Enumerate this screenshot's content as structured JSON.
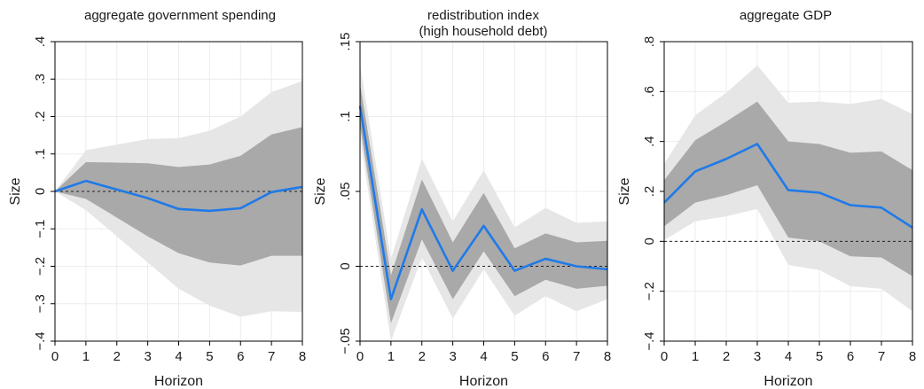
{
  "chart_data": [
    {
      "type": "area",
      "title": "aggregate government spending",
      "title2": "",
      "xlabel": "Horizon",
      "ylabel": "Size",
      "xlim": [
        0,
        8
      ],
      "ylim": [
        -0.4,
        0.4
      ],
      "xticks": [
        0,
        1,
        2,
        3,
        4,
        5,
        6,
        7,
        8
      ],
      "xtick_labels": [
        "0",
        "1",
        "2",
        "3",
        "4",
        "5",
        "6",
        "7",
        "8"
      ],
      "yticks": [
        -0.4,
        -0.3,
        -0.2,
        -0.1,
        0,
        0.1,
        0.2,
        0.3,
        0.4
      ],
      "ytick_labels": [
        "−.4",
        "−.3",
        "−.2",
        "−.1",
        "0",
        ".1",
        ".2",
        ".3",
        ".4"
      ],
      "x": [
        0,
        1,
        2,
        3,
        4,
        5,
        6,
        7,
        8
      ],
      "series": [
        {
          "role": "outer-band-upper",
          "values": [
            0,
            0.11,
            0.125,
            0.14,
            0.142,
            0.162,
            0.2,
            0.265,
            0.295
          ]
        },
        {
          "role": "outer-band-lower",
          "values": [
            0,
            -0.05,
            -0.12,
            -0.19,
            -0.26,
            -0.305,
            -0.335,
            -0.32,
            -0.322
          ]
        },
        {
          "role": "inner-band-upper",
          "values": [
            0,
            0.078,
            0.077,
            0.075,
            0.065,
            0.072,
            0.095,
            0.152,
            0.172
          ]
        },
        {
          "role": "inner-band-lower",
          "values": [
            0,
            -0.02,
            -0.07,
            -0.12,
            -0.165,
            -0.19,
            -0.198,
            -0.172,
            -0.172
          ]
        },
        {
          "role": "point-estimate",
          "values": [
            0,
            0.028,
            0.005,
            -0.018,
            -0.047,
            -0.052,
            -0.045,
            -0.002,
            0.012
          ]
        }
      ],
      "zero_line": true,
      "grid": true,
      "colors": {
        "outer_band": "#e6e6e6",
        "inner_band": "#a9a9a9",
        "line": "#1f7ae8",
        "zero_line": "#222222",
        "grid": "#ececec"
      }
    },
    {
      "type": "area",
      "title": "redistribution index",
      "title2": "(high household debt)",
      "xlabel": "Horizon",
      "ylabel": "Size",
      "xlim": [
        0,
        8
      ],
      "ylim": [
        -0.05,
        0.15
      ],
      "xticks": [
        0,
        1,
        2,
        3,
        4,
        5,
        6,
        7,
        8
      ],
      "xtick_labels": [
        "0",
        "1",
        "2",
        "3",
        "4",
        "5",
        "6",
        "7",
        "8"
      ],
      "yticks": [
        -0.05,
        0,
        0.05,
        0.1,
        0.15
      ],
      "ytick_labels": [
        "−.05",
        "0",
        ".05",
        ".1",
        ".15"
      ],
      "x": [
        0,
        1,
        2,
        3,
        4,
        5,
        6,
        7,
        8
      ],
      "series": [
        {
          "role": "outer-band-upper",
          "values": [
            0.135,
            0.005,
            0.072,
            0.03,
            0.064,
            0.026,
            0.039,
            0.029,
            0.03
          ]
        },
        {
          "role": "outer-band-lower",
          "values": [
            0.086,
            -0.05,
            0.006,
            -0.035,
            -0.002,
            -0.033,
            -0.02,
            -0.03,
            -0.022
          ]
        },
        {
          "role": "inner-band-upper",
          "values": [
            0.122,
            -0.006,
            0.058,
            0.016,
            0.049,
            0.012,
            0.022,
            0.016,
            0.017
          ]
        },
        {
          "role": "inner-band-lower",
          "values": [
            0.094,
            -0.038,
            0.018,
            -0.022,
            0.01,
            -0.02,
            -0.009,
            -0.015,
            -0.013
          ]
        },
        {
          "role": "point-estimate",
          "values": [
            0.107,
            -0.022,
            0.038,
            -0.003,
            0.027,
            -0.003,
            0.005,
            0.0,
            -0.002
          ]
        }
      ],
      "zero_line": true,
      "grid": true,
      "colors": {
        "outer_band": "#e6e6e6",
        "inner_band": "#a9a9a9",
        "line": "#1f7ae8",
        "zero_line": "#222222",
        "grid": "#ececec"
      }
    },
    {
      "type": "area",
      "title": "aggregate GDP",
      "title2": "",
      "xlabel": "Horizon",
      "ylabel": "Size",
      "xlim": [
        0,
        8
      ],
      "ylim": [
        -0.4,
        0.8
      ],
      "xticks": [
        0,
        1,
        2,
        3,
        4,
        5,
        6,
        7,
        8
      ],
      "xtick_labels": [
        "0",
        "1",
        "2",
        "3",
        "4",
        "5",
        "6",
        "7",
        "8"
      ],
      "yticks": [
        -0.4,
        -0.2,
        0,
        0.2,
        0.4,
        0.6,
        0.8
      ],
      "ytick_labels": [
        "−.4",
        "−.2",
        "0",
        ".2",
        ".4",
        ".6",
        ".8"
      ],
      "x": [
        0,
        1,
        2,
        3,
        4,
        5,
        6,
        7,
        8
      ],
      "series": [
        {
          "role": "outer-band-upper",
          "values": [
            0.31,
            0.505,
            0.595,
            0.705,
            0.555,
            0.56,
            0.55,
            0.57,
            0.51
          ]
        },
        {
          "role": "outer-band-lower",
          "values": [
            0.005,
            0.08,
            0.1,
            0.13,
            -0.095,
            -0.115,
            -0.18,
            -0.19,
            -0.28
          ]
        },
        {
          "role": "inner-band-upper",
          "values": [
            0.245,
            0.405,
            0.48,
            0.56,
            0.4,
            0.39,
            0.355,
            0.36,
            0.285
          ]
        },
        {
          "role": "inner-band-lower",
          "values": [
            0.06,
            0.155,
            0.185,
            0.225,
            0.015,
            0.0,
            -0.06,
            -0.065,
            -0.14
          ]
        },
        {
          "role": "point-estimate",
          "values": [
            0.155,
            0.28,
            0.33,
            0.39,
            0.205,
            0.195,
            0.145,
            0.135,
            0.055
          ]
        }
      ],
      "zero_line": true,
      "grid": true,
      "colors": {
        "outer_band": "#e6e6e6",
        "inner_band": "#a9a9a9",
        "line": "#1f7ae8",
        "zero_line": "#222222",
        "grid": "#ececec"
      }
    }
  ]
}
